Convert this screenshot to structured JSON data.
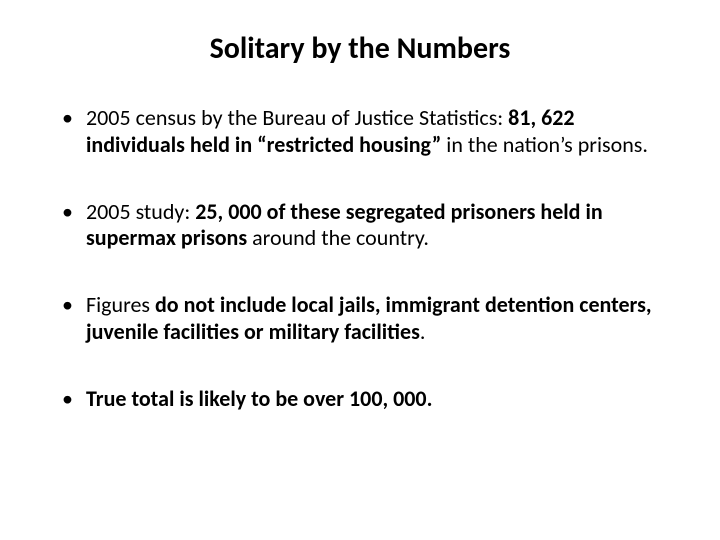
{
  "background_color": "#ffffff",
  "text_color": "#000000",
  "title": "Solitary by the Numbers",
  "title_fontsize": 30,
  "title_weight": 700,
  "body_fontsize": 22,
  "bullets": [
    {
      "runs": [
        {
          "text": "2005 census by the Bureau of Justice Statistics: ",
          "bold": false
        },
        {
          "text": "81, 622 individuals held in “restricted housing” ",
          "bold": true
        },
        {
          "text": "in the nation’s prisons.",
          "bold": false
        }
      ]
    },
    {
      "runs": [
        {
          "text": "2005 study: ",
          "bold": false
        },
        {
          "text": "25, 000 of these segregated prisoners held in supermax prisons ",
          "bold": true
        },
        {
          "text": "around the country.",
          "bold": false
        }
      ]
    },
    {
      "runs": [
        {
          "text": "Figures ",
          "bold": false
        },
        {
          "text": "do not include local jails, immigrant detention centers,  juvenile facilities or military facilities",
          "bold": true
        },
        {
          "text": ".",
          "bold": false
        }
      ]
    },
    {
      "runs": [
        {
          "text": "True total is likely to be over 100, 000.",
          "bold": true
        }
      ]
    }
  ]
}
